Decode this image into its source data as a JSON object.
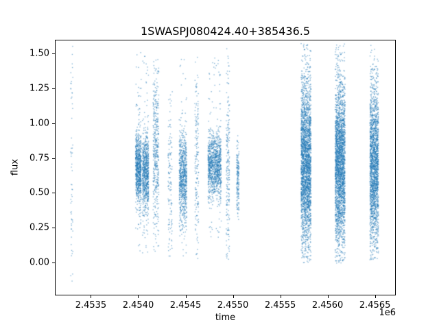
{
  "chart_data": {
    "type": "scatter",
    "title": "1SWASPJ080424.40+385436.5",
    "xlabel": "time",
    "ylabel": "flux",
    "x_offset_label": "1e6",
    "marker_color": "#1f77b4",
    "marker_size_px": 1.4,
    "marker_alpha": 0.55,
    "grid": false,
    "legend": "none",
    "xlim": [
      2453120,
      2456720
    ],
    "ylim": [
      -0.235,
      1.598
    ],
    "xticks": [
      2453500,
      2454000,
      2454500,
      2455000,
      2455500,
      2456000,
      2456500
    ],
    "xtick_labels": [
      "2.4535",
      "2.4540",
      "2.4545",
      "2.4550",
      "2.4555",
      "2.4560",
      "2.4565"
    ],
    "yticks": [
      0.0,
      0.25,
      0.5,
      0.75,
      1.0,
      1.25,
      1.5
    ],
    "ytick_labels": [
      "0.00",
      "0.25",
      "0.50",
      "0.75",
      "1.00",
      "1.25",
      "1.50"
    ],
    "clusters": [
      {
        "x_center": 2453290,
        "x_width": 25,
        "n": 60,
        "y_mean": 0.7,
        "y_sd": 0.5,
        "y_min": -0.14,
        "y_max": 1.56,
        "tail_frac": 0.9
      },
      {
        "x_center": 2453995,
        "x_width": 60,
        "n": 800,
        "y_mean": 0.68,
        "y_sd": 0.13,
        "y_min": 0.05,
        "y_max": 1.52,
        "tail_frac": 0.07
      },
      {
        "x_center": 2454070,
        "x_width": 65,
        "n": 750,
        "y_mean": 0.65,
        "y_sd": 0.14,
        "y_min": 0.05,
        "y_max": 1.5,
        "tail_frac": 0.07
      },
      {
        "x_center": 2454180,
        "x_width": 60,
        "n": 420,
        "y_mean": 0.78,
        "y_sd": 0.28,
        "y_min": 0.08,
        "y_max": 1.5,
        "tail_frac": 0.1
      },
      {
        "x_center": 2454330,
        "x_width": 45,
        "n": 130,
        "y_mean": 0.6,
        "y_sd": 0.3,
        "y_min": 0.05,
        "y_max": 1.35,
        "tail_frac": 0.2
      },
      {
        "x_center": 2454465,
        "x_width": 80,
        "n": 800,
        "y_mean": 0.62,
        "y_sd": 0.16,
        "y_min": 0.05,
        "y_max": 1.5,
        "tail_frac": 0.07
      },
      {
        "x_center": 2454610,
        "x_width": 40,
        "n": 170,
        "y_mean": 0.7,
        "y_sd": 0.38,
        "y_min": 0.02,
        "y_max": 1.55,
        "tail_frac": 0.15
      },
      {
        "x_center": 2454800,
        "x_width": 140,
        "n": 1100,
        "y_mean": 0.7,
        "y_sd": 0.11,
        "y_min": 0.05,
        "y_max": 1.5,
        "tail_frac": 0.06
      },
      {
        "x_center": 2454940,
        "x_width": 35,
        "n": 200,
        "y_mean": 0.72,
        "y_sd": 0.33,
        "y_min": 0.02,
        "y_max": 1.56,
        "tail_frac": 0.15
      },
      {
        "x_center": 2455045,
        "x_width": 25,
        "n": 170,
        "y_mean": 0.6,
        "y_sd": 0.14,
        "y_min": 0.28,
        "y_max": 0.95,
        "tail_frac": 0.05
      },
      {
        "x_center": 2455765,
        "x_width": 105,
        "n": 2600,
        "y_mean": 0.72,
        "y_sd": 0.29,
        "y_min": 0.0,
        "y_max": 1.58,
        "tail_frac": 0.08
      },
      {
        "x_center": 2456125,
        "x_width": 105,
        "n": 2600,
        "y_mean": 0.72,
        "y_sd": 0.29,
        "y_min": 0.0,
        "y_max": 1.58,
        "tail_frac": 0.08
      },
      {
        "x_center": 2456485,
        "x_width": 90,
        "n": 2000,
        "y_mean": 0.7,
        "y_sd": 0.29,
        "y_min": 0.02,
        "y_max": 1.57,
        "tail_frac": 0.08
      }
    ]
  }
}
